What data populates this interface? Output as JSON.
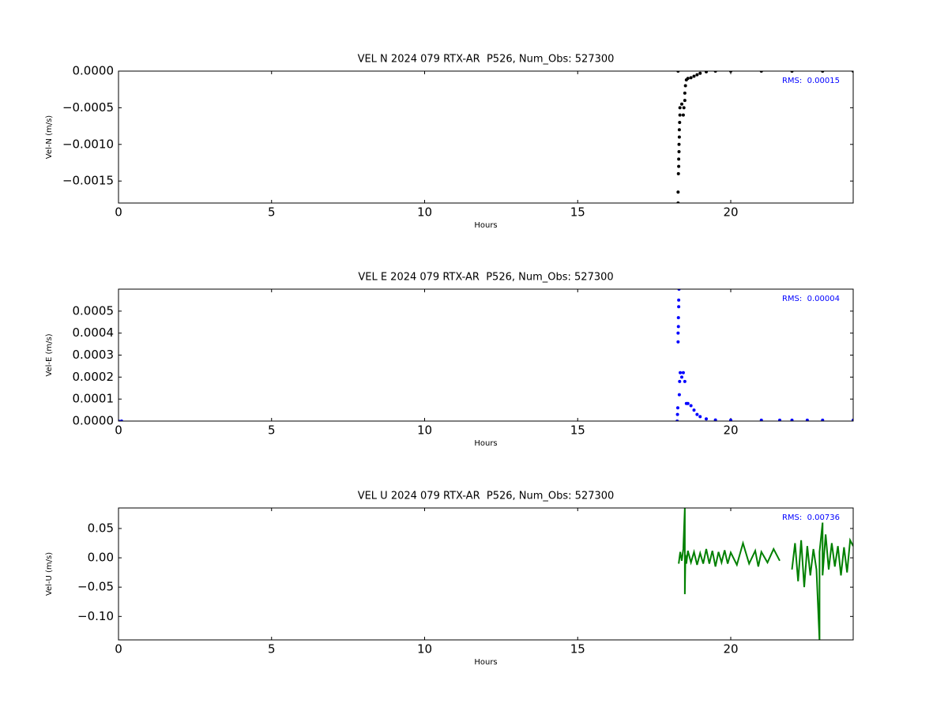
{
  "chart_data": [
    {
      "type": "scatter",
      "title": "VEL N 2024 079 RTX-AR  P526, Num_Obs: 527300",
      "xlabel": "Hours",
      "ylabel": "Vel-N (m/s)",
      "annotation": "RMS:  0.00015",
      "annotation_color": "#0000ff",
      "color": "#000000",
      "xlim": [
        0,
        24
      ],
      "xticks": [
        0,
        5,
        10,
        15,
        20
      ],
      "ylim": [
        -0.0018,
        0
      ],
      "yticks": [
        {
          "value": 0,
          "label": "0.0000"
        },
        {
          "value": -0.0005,
          "label": "−0.0005"
        },
        {
          "value": -0.001,
          "label": "−0.0010"
        },
        {
          "value": -0.0015,
          "label": "−0.0015"
        }
      ],
      "x": [
        18.28,
        18.28,
        18.28,
        18.29,
        18.3,
        18.3,
        18.31,
        18.31,
        18.32,
        18.32,
        18.33,
        18.34,
        18.34,
        18.4,
        18.45,
        18.47,
        18.5,
        18.5,
        18.52,
        18.55,
        18.6,
        18.7,
        18.8,
        18.9,
        19.0,
        19.2,
        19.5,
        20,
        21,
        22,
        23,
        24
      ],
      "values": [
        0,
        -0.0018,
        -0.00165,
        -0.0014,
        -0.0013,
        -0.0012,
        -0.0011,
        -0.001,
        -0.0009,
        -0.0008,
        -0.0007,
        -0.0006,
        -0.0005,
        -0.00045,
        -0.0006,
        -0.0005,
        -0.0004,
        -0.0003,
        -0.0002,
        -0.00012,
        -0.0001,
        -9e-05,
        -7e-05,
        -5e-05,
        -3e-05,
        -1e-05,
        0,
        0,
        0,
        0,
        0,
        0
      ]
    },
    {
      "type": "scatter",
      "title": "VEL E 2024 079 RTX-AR  P526, Num_Obs: 527300",
      "xlabel": "Hours",
      "ylabel": "Vel-E (m/s)",
      "annotation": "RMS:  0.00004",
      "annotation_color": "#0000ff",
      "color": "#0000ff",
      "xlim": [
        0,
        24
      ],
      "xticks": [
        0,
        5,
        10,
        15,
        20
      ],
      "ylim": [
        0,
        0.0006
      ],
      "yticks": [
        {
          "value": 0,
          "label": "0.0000"
        },
        {
          "value": 0.0001,
          "label": "0.0001"
        },
        {
          "value": 0.0002,
          "label": "0.0002"
        },
        {
          "value": 0.0003,
          "label": "0.0003"
        },
        {
          "value": 0.0004,
          "label": "0.0004"
        },
        {
          "value": 0.0005,
          "label": "0.0005"
        }
      ],
      "x": [
        0,
        0.1,
        18.25,
        18.26,
        18.27,
        18.28,
        18.28,
        18.29,
        18.29,
        18.3,
        18.3,
        18.31,
        18.32,
        18.33,
        18.35,
        18.4,
        18.45,
        18.5,
        18.55,
        18.6,
        18.7,
        18.8,
        18.9,
        19.0,
        19.2,
        19.5,
        20,
        21,
        21.6,
        22,
        22.5,
        23,
        24
      ],
      "values": [
        0,
        0,
        0,
        3e-05,
        6e-05,
        0.00036,
        0.0004,
        0.00043,
        0.00047,
        0.00052,
        0.00055,
        0.0006,
        0.00012,
        0.00018,
        0.00022,
        0.0002,
        0.00022,
        0.00018,
        8e-05,
        8e-05,
        7e-05,
        5e-05,
        3e-05,
        2e-05,
        1e-05,
        5e-06,
        4e-06,
        4e-06,
        4e-06,
        4e-06,
        4e-06,
        4e-06,
        4e-06
      ]
    },
    {
      "type": "line",
      "title": "VEL U 2024 079 RTX-AR  P526, Num_Obs: 527300",
      "xlabel": "Hours",
      "ylabel": "Vel-U (m/s)",
      "annotation": "RMS:  0.00736",
      "annotation_color": "#0000ff",
      "color": "#008000",
      "xlim": [
        0,
        24
      ],
      "xticks": [
        0,
        5,
        10,
        15,
        20
      ],
      "ylim": [
        -0.14,
        0.085
      ],
      "yticks": [
        {
          "value": 0.05,
          "label": "0.05"
        },
        {
          "value": 0,
          "label": "0.00"
        },
        {
          "value": -0.05,
          "label": "−0.05"
        },
        {
          "value": -0.1,
          "label": "−0.10"
        }
      ],
      "x": [
        18.3,
        18.35,
        18.4,
        18.45,
        18.5,
        18.5,
        18.52,
        18.55,
        18.6,
        18.7,
        18.8,
        18.9,
        19.0,
        19.1,
        19.2,
        19.3,
        19.4,
        19.5,
        19.6,
        19.7,
        19.8,
        19.9,
        20.0,
        20.2,
        20.4,
        20.6,
        20.8,
        20.9,
        21.0,
        21.2,
        21.4,
        21.6,
        21.7,
        22.0,
        22.1,
        22.2,
        22.3,
        22.4,
        22.5,
        22.6,
        22.7,
        22.8,
        22.9,
        22.9,
        23.0,
        23.0,
        23.1,
        23.2,
        23.3,
        23.4,
        23.5,
        23.6,
        23.7,
        23.8,
        23.9,
        24.0
      ],
      "values": [
        -0.01,
        0.01,
        -0.005,
        0.015,
        0.085,
        -0.062,
        0.005,
        -0.01,
        0.012,
        -0.008,
        0.01,
        -0.012,
        0.008,
        -0.01,
        0.015,
        -0.01,
        0.012,
        -0.015,
        0.01,
        -0.008,
        0.013,
        -0.01,
        0.009,
        -0.012,
        0.025,
        -0.01,
        0.012,
        -0.015,
        0.01,
        -0.008,
        0.015,
        -0.005,
        null,
        -0.02,
        0.025,
        -0.04,
        0.03,
        -0.05,
        0.02,
        -0.03,
        0.015,
        -0.02,
        -0.142,
        0.01,
        0.06,
        -0.03,
        0.04,
        -0.02,
        0.025,
        -0.015,
        0.02,
        -0.03,
        0.018,
        -0.025,
        0.03,
        0.02
      ]
    }
  ]
}
